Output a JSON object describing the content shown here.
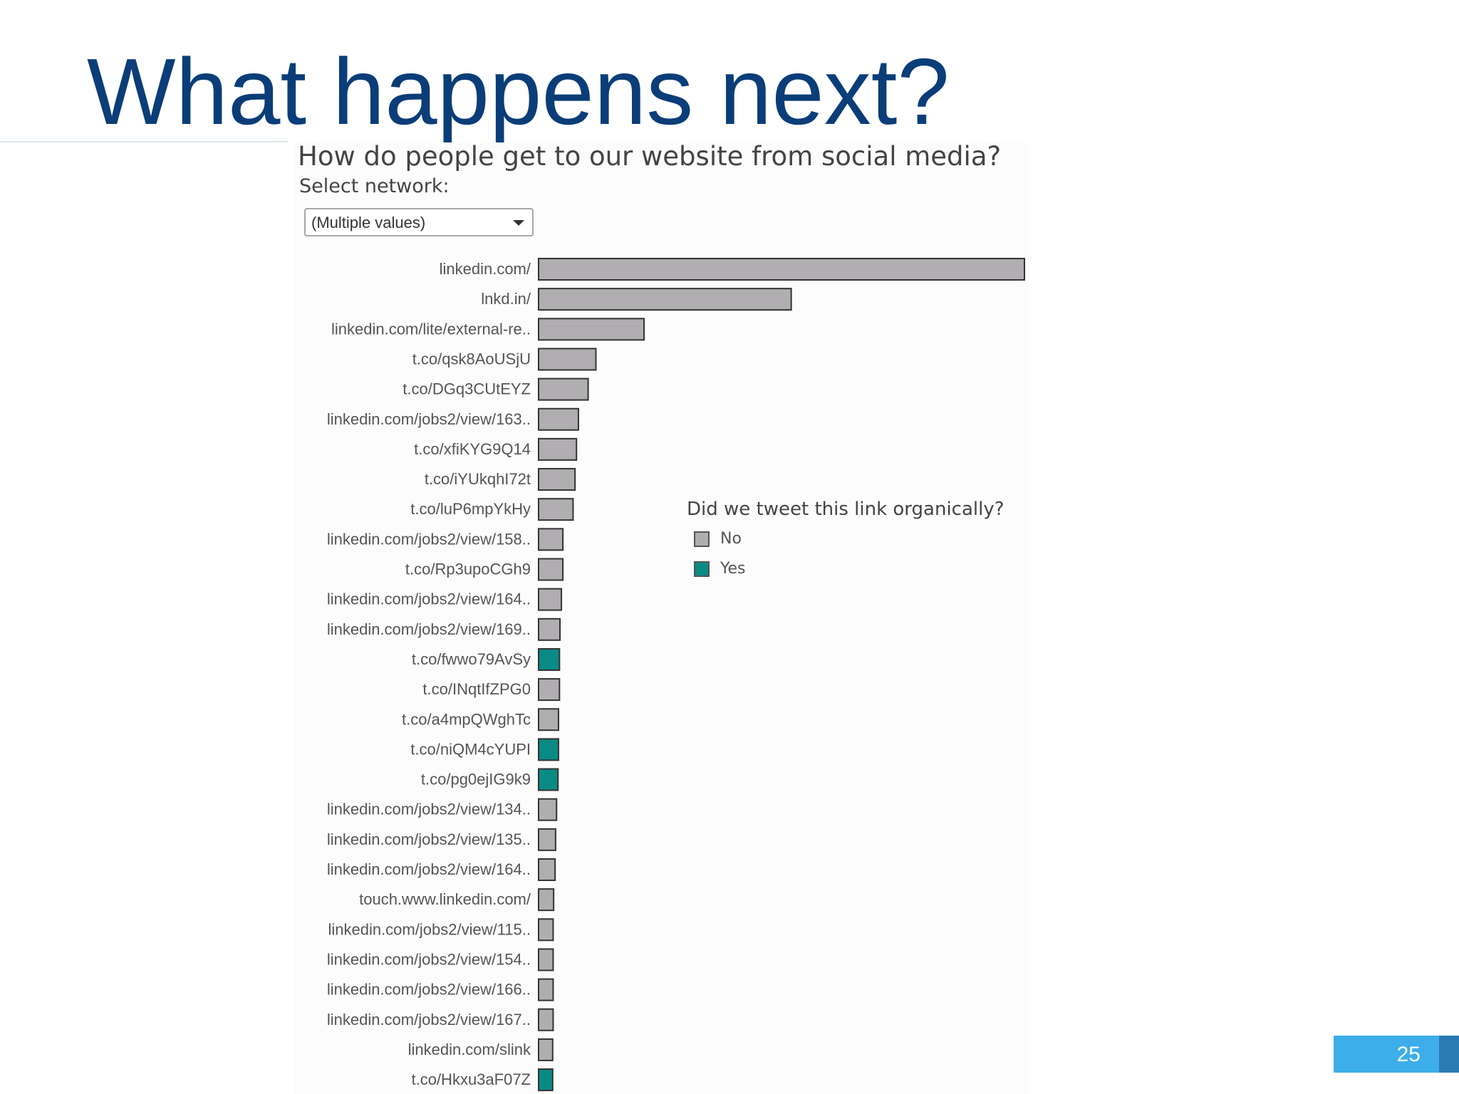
{
  "slide": {
    "title": "What happens next?",
    "page_number": "25"
  },
  "filter": {
    "label": "Select network:",
    "value": "(Multiple values)"
  },
  "legend": {
    "title": "Did we tweet this link organically?",
    "items": [
      {
        "label": "No",
        "color": "#b0aeb0"
      },
      {
        "label": "Yes",
        "color": "#0a8a85"
      }
    ]
  },
  "chart_data": {
    "type": "bar",
    "orientation": "horizontal",
    "title": "How do people get to our website from social media?",
    "grid": false,
    "legend_position": "right",
    "categories": [
      "linkedin.com/",
      "lnkd.in/",
      "linkedin.com/lite/external-re..",
      "t.co/qsk8AoUSjU",
      "t.co/DGq3CUtEYZ",
      "linkedin.com/jobs2/view/163..",
      "t.co/xfiKYG9Q14",
      "t.co/iYUkqhI72t",
      "t.co/luP6mpYkHy",
      "linkedin.com/jobs2/view/158..",
      "t.co/Rp3upoCGh9",
      "linkedin.com/jobs2/view/164..",
      "linkedin.com/jobs2/view/169..",
      "t.co/fwwo79AvSy",
      "t.co/INqtIfZPG0",
      "t.co/a4mpQWghTc",
      "t.co/niQM4cYUPI",
      "t.co/pg0ejIG9k9",
      "linkedin.com/jobs2/view/134..",
      "linkedin.com/jobs2/view/135..",
      "linkedin.com/jobs2/view/164..",
      "touch.www.linkedin.com/",
      "linkedin.com/jobs2/view/115..",
      "linkedin.com/jobs2/view/154..",
      "linkedin.com/jobs2/view/166..",
      "linkedin.com/jobs2/view/167..",
      "linkedin.com/slink",
      "t.co/Hkxu3aF07Z"
    ],
    "values": [
      1000,
      520,
      217,
      118,
      102,
      82,
      78,
      75,
      71,
      50,
      50,
      47,
      44,
      43,
      43,
      41,
      41,
      40,
      37,
      35,
      34,
      31,
      30,
      30,
      30,
      30,
      29,
      29
    ],
    "organic": [
      "No",
      "No",
      "No",
      "No",
      "No",
      "No",
      "No",
      "No",
      "No",
      "No",
      "No",
      "No",
      "No",
      "Yes",
      "No",
      "No",
      "Yes",
      "Yes",
      "No",
      "No",
      "No",
      "No",
      "No",
      "No",
      "No",
      "No",
      "No",
      "Yes"
    ],
    "xlim": [
      0,
      1000
    ],
    "xlabel": "",
    "ylabel": ""
  }
}
